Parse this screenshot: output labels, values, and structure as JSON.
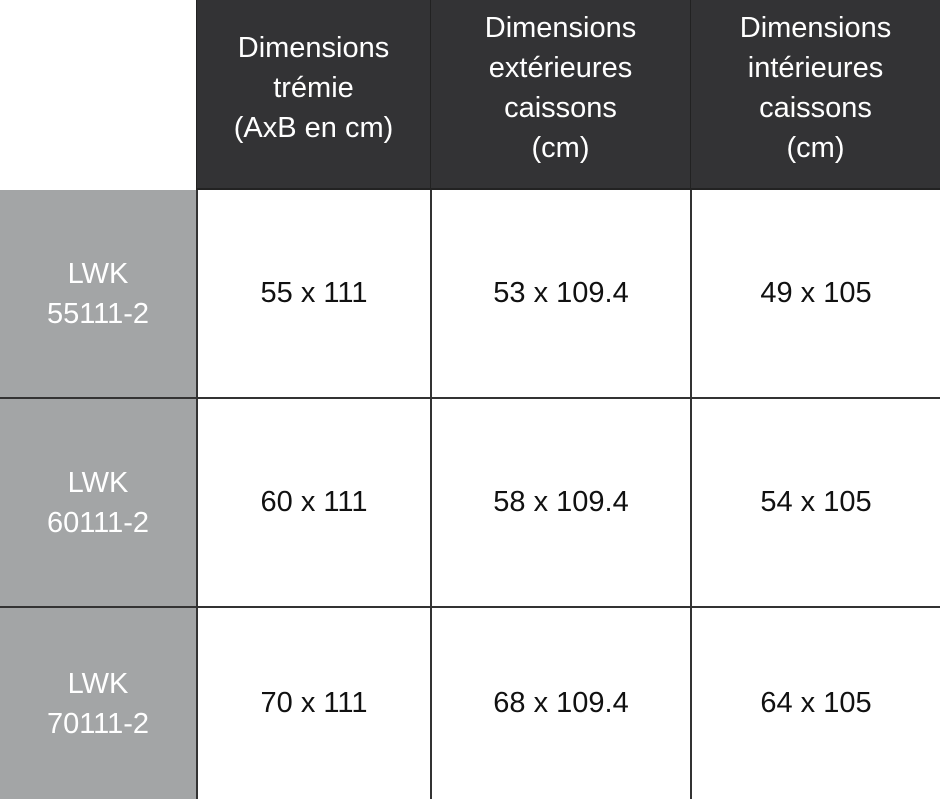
{
  "headers": [
    "Dimensions\ntrémie\n(AxB en cm)",
    "Dimensions\nextérieures\ncaissons\n(cm)",
    "Dimensions\nintérieures\ncaissons\n(cm)"
  ],
  "rows": [
    {
      "model": "LWK\n55111-2",
      "values": [
        "55 x 111",
        "53 x 109.4",
        "49 x 105"
      ]
    },
    {
      "model": "LWK\n60111-2",
      "values": [
        "60 x 111",
        "58 x 109.4",
        "54 x 105"
      ]
    },
    {
      "model": "LWK\n70111-2",
      "values": [
        "70 x 111",
        "68 x 109.4",
        "64 x 105"
      ]
    }
  ],
  "colors": {
    "header_bg": "#333335",
    "row_header_bg": "#a3a5a6"
  }
}
